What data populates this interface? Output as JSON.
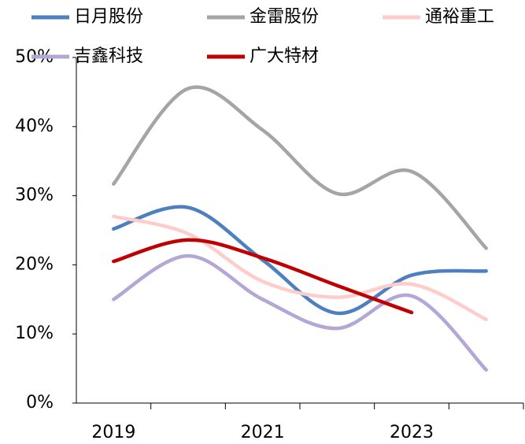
{
  "chart_data": {
    "type": "line",
    "categories": [
      "2019",
      null,
      "2021",
      null,
      "2023",
      null
    ],
    "series": [
      {
        "name": "日月股份",
        "color": "#4e7fbf",
        "values": [
          25.2,
          28.3,
          20.7,
          13.0,
          18.5,
          19.1
        ]
      },
      {
        "name": "金雷股份",
        "color": "#a5a5a5",
        "values": [
          31.7,
          45.5,
          39.5,
          30.3,
          33.5,
          22.4
        ]
      },
      {
        "name": "通裕重工",
        "color": "#ffcccc",
        "values": [
          27.0,
          24.5,
          17.6,
          15.3,
          17.2,
          12.1
        ]
      },
      {
        "name": "吉鑫科技",
        "color": "#b4a7d6",
        "values": [
          15.0,
          21.3,
          15.0,
          10.8,
          15.5,
          4.8
        ]
      },
      {
        "name": "广大特材",
        "color": "#c00000",
        "values": [
          20.5,
          23.6,
          21.0,
          17.0,
          13.1,
          null
        ]
      }
    ],
    "ylim": [
      0,
      50
    ],
    "yticks": [
      {
        "value": 0,
        "label": "0%"
      },
      {
        "value": 10,
        "label": "10%"
      },
      {
        "value": 20,
        "label": "20%"
      },
      {
        "value": 30,
        "label": "30%"
      },
      {
        "value": 40,
        "label": "40%"
      },
      {
        "value": 50,
        "label": "50%"
      }
    ],
    "smooth": true,
    "legend": "top"
  }
}
